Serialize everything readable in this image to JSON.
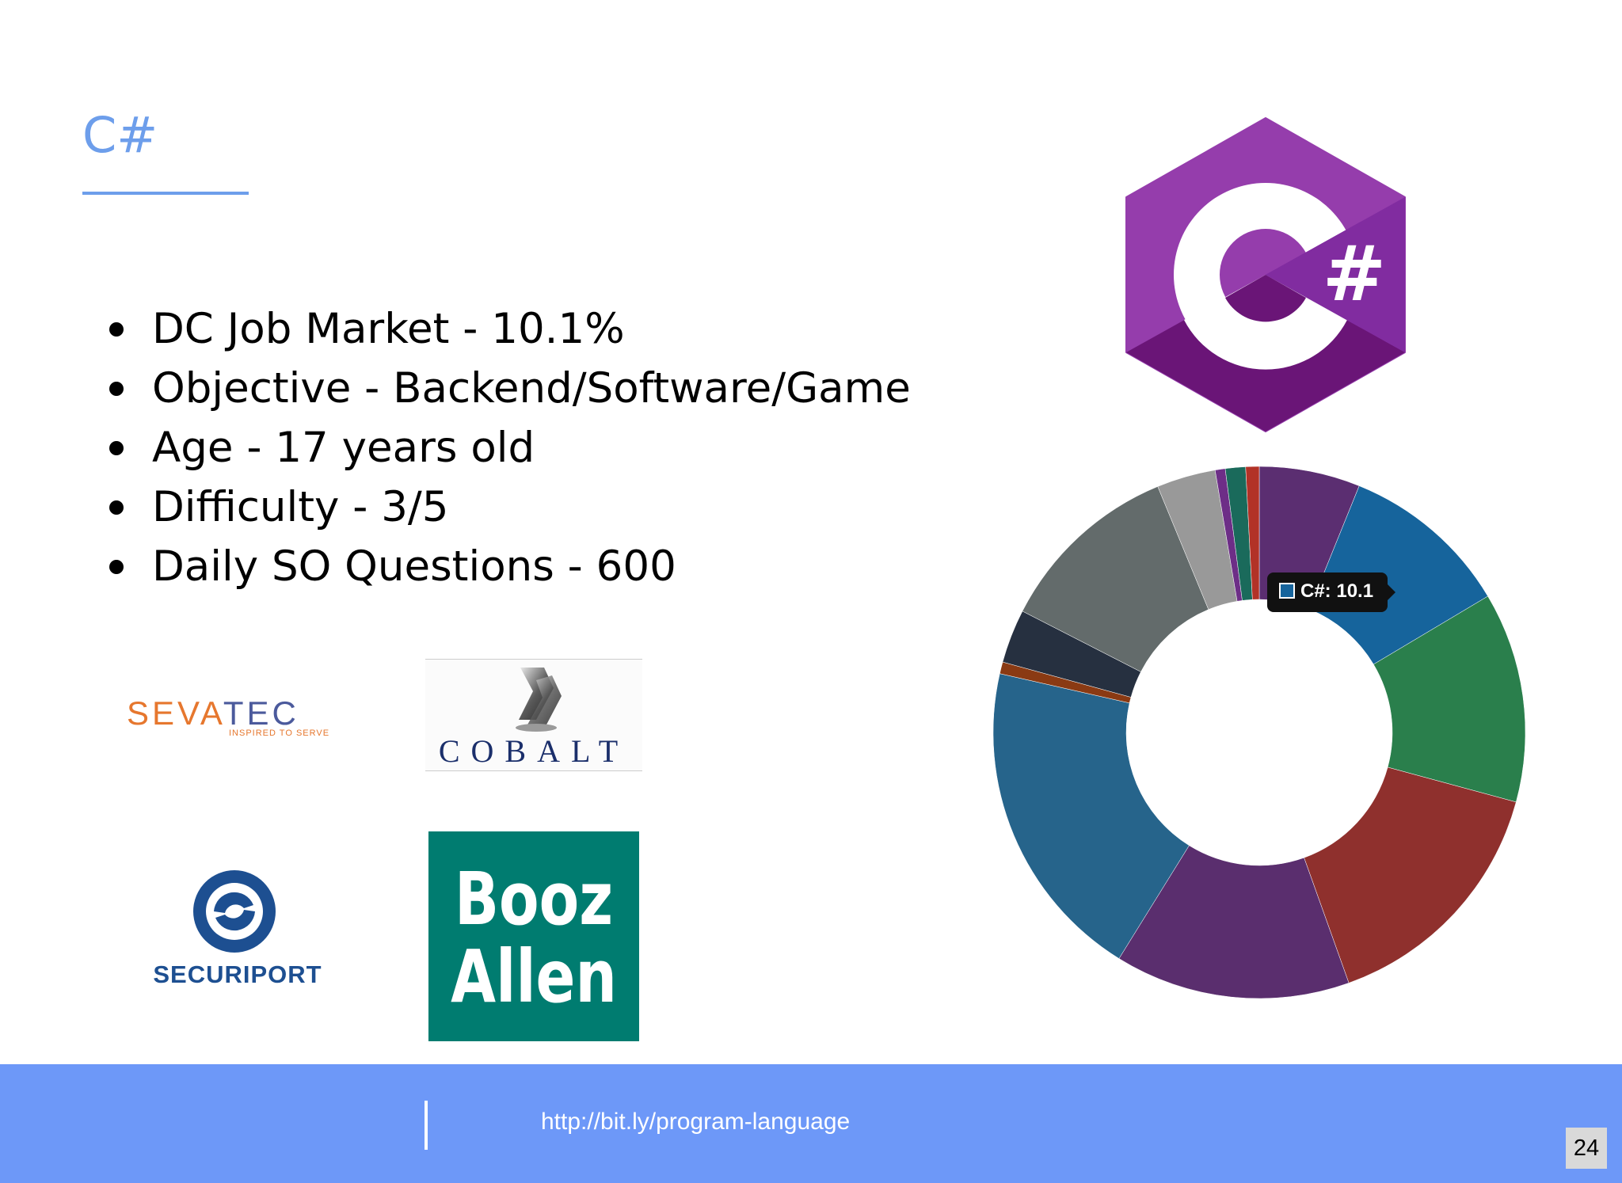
{
  "slide": {
    "title": "C#",
    "accent_color": "#6d9eeb",
    "bullets": [
      {
        "text": "DC Job Market - 10.1%"
      },
      {
        "text": "Objective - Backend/Software/Game"
      },
      {
        "text": "Age - 17 years old"
      },
      {
        "text": "Difficulty - 3/5"
      },
      {
        "text": "Daily SO Questions - 600"
      }
    ]
  },
  "logos": {
    "sevatec": {
      "name_part1": "SEVA",
      "name_part2": "TEC",
      "tagline": "INSPIRED TO SERVE"
    },
    "cobalt": {
      "name": "COBALT"
    },
    "securiport": {
      "name": "SECURIPORT"
    },
    "booz_allen": {
      "line1": "Booz",
      "line2": "Allen",
      "color": "#007c70"
    },
    "csharp": {
      "symbol": "#",
      "color": "#953dac"
    }
  },
  "chart_data": {
    "type": "pie",
    "donut": true,
    "slices": [
      {
        "value": 6.0,
        "color": "#5b2e71"
      },
      {
        "value": 10.1,
        "color": "#16649c"
      },
      {
        "value": 12.5,
        "color": "#2a7f4c"
      },
      {
        "value": 15.0,
        "color": "#8f302d"
      },
      {
        "value": 14.0,
        "color": "#5a2e6e"
      },
      {
        "value": 19.3,
        "color": "#26648b"
      },
      {
        "value": 0.7,
        "color": "#8a3a13"
      },
      {
        "value": 3.2,
        "color": "#263040"
      },
      {
        "value": 11.0,
        "color": "#636b6b"
      },
      {
        "value": 3.5,
        "color": "#999999"
      },
      {
        "value": 0.6,
        "color": "#6d2e87"
      },
      {
        "value": 1.2,
        "color": "#1a6a5b"
      },
      {
        "value": 0.8,
        "color": "#b23227"
      }
    ],
    "tooltip": {
      "label": "C#: 10.1",
      "color": "#16649c"
    }
  },
  "footer": {
    "link": "http://bit.ly/program-language",
    "page_number": "24",
    "color": "#6d98f8"
  }
}
